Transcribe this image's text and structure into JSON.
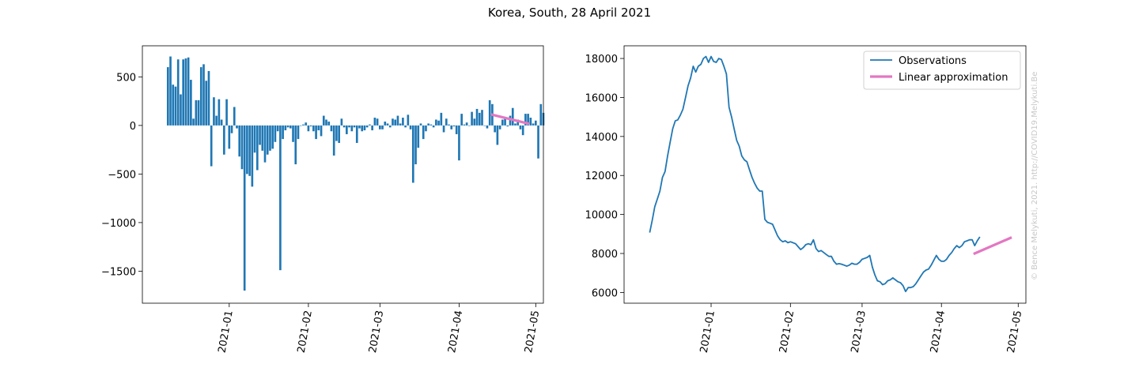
{
  "title": "Korea, South, 28 April 2021",
  "watermark": "© Bence Melykuti, 2021. http://COVID19.Melykuti.Be",
  "colors": {
    "bar": "#1f77b4",
    "observations": "#1f77b4",
    "linear": "#e377c2"
  },
  "chart_data": [
    {
      "type": "bar",
      "title": "",
      "xlabel": "",
      "ylabel": "",
      "x_ticks": [
        "2021-01",
        "2021-02",
        "2021-03",
        "2021-04",
        "2021-05"
      ],
      "y_ticks": [
        "500",
        "0",
        "−500",
        "−1000",
        "−1500"
      ],
      "ylim": [
        -1830,
        820
      ],
      "xlim": [
        "2020-11-28",
        "2021-05-04"
      ],
      "x_start": "2020-12-08",
      "values": [
        600,
        710,
        420,
        400,
        680,
        320,
        680,
        690,
        700,
        470,
        70,
        260,
        260,
        600,
        630,
        460,
        560,
        -420,
        290,
        100,
        270,
        60,
        -300,
        270,
        -240,
        -80,
        190,
        -30,
        -320,
        -450,
        -1700,
        -500,
        -520,
        -630,
        -280,
        -460,
        -200,
        -260,
        -380,
        -300,
        -260,
        -240,
        -170,
        -60,
        -1490,
        -140,
        -50,
        -20,
        -30,
        -170,
        -400,
        -140,
        0,
        10,
        30,
        -60,
        -10,
        -60,
        -140,
        -50,
        -110,
        100,
        60,
        40,
        -60,
        -310,
        -160,
        -180,
        70,
        -20,
        -90,
        -20,
        -60,
        -20,
        -180,
        -30,
        -60,
        -50,
        -20,
        10,
        -50,
        80,
        70,
        -40,
        -40,
        40,
        20,
        -20,
        70,
        60,
        100,
        20,
        80,
        -20,
        110,
        -40,
        -590,
        -400,
        -230,
        20,
        -140,
        -60,
        20,
        10,
        -20,
        60,
        50,
        130,
        -70,
        70,
        10,
        -40,
        -10,
        -90,
        -360,
        120,
        10,
        30,
        0,
        140,
        70,
        170,
        130,
        160,
        0,
        -30,
        260,
        220,
        -70,
        -200,
        -40,
        60,
        70,
        -10,
        100,
        180,
        20,
        60,
        -40,
        -100,
        120,
        120,
        80,
        20,
        50,
        -340,
        220,
        130
      ],
      "series": [
        {
          "name": "",
          "values": []
        }
      ],
      "linear_approximation": {
        "start": [
          "2021-04-14",
          110
        ],
        "end": [
          "2021-04-28",
          20
        ]
      }
    },
    {
      "type": "line",
      "title": "",
      "xlabel": "",
      "ylabel": "",
      "x_ticks": [
        "2021-01",
        "2021-02",
        "2021-03",
        "2021-04",
        "2021-05"
      ],
      "y_ticks": [
        "18000",
        "16000",
        "14000",
        "12000",
        "10000",
        "8000",
        "6000"
      ],
      "ylim": [
        5450,
        18650
      ],
      "xlim": [
        "2020-11-28",
        "2021-05-04"
      ],
      "legend_position": "top-right",
      "series": [
        {
          "name": "Observations",
          "x_start": "2020-12-08",
          "values": [
            9070,
            9700,
            10400,
            10800,
            11200,
            11900,
            12200,
            13000,
            13700,
            14400,
            14800,
            14850,
            15100,
            15400,
            16000,
            16600,
            17000,
            17600,
            17300,
            17600,
            17700,
            18000,
            18100,
            17800,
            18100,
            17850,
            17800,
            18000,
            17950,
            17600,
            17200,
            15500,
            15000,
            14400,
            13800,
            13500,
            13000,
            12800,
            12700,
            12300,
            11900,
            11600,
            11350,
            11200,
            11200,
            9750,
            9600,
            9550,
            9500,
            9200,
            8900,
            8700,
            8600,
            8650,
            8550,
            8600,
            8550,
            8500,
            8350,
            8200,
            8300,
            8450,
            8500,
            8450,
            8700,
            8250,
            8100,
            8150,
            8050,
            7950,
            7850,
            7850,
            7600,
            7450,
            7480,
            7450,
            7400,
            7350,
            7400,
            7500,
            7450,
            7450,
            7550,
            7700,
            7750,
            7800,
            7900,
            7300,
            6900,
            6600,
            6550,
            6400,
            6450,
            6600,
            6650,
            6750,
            6650,
            6550,
            6500,
            6350,
            6050,
            6250,
            6250,
            6300,
            6450,
            6650,
            6850,
            7050,
            7150,
            7200,
            7400,
            7650,
            7900,
            7700,
            7600,
            7600,
            7700,
            7900,
            8050,
            8250,
            8400,
            8300,
            8400,
            8600,
            8650,
            8700,
            8700,
            8400,
            8650,
            8850
          ]
        },
        {
          "name": "Linear approximation",
          "points": [
            [
              "2021-04-14",
              8000
            ],
            [
              "2021-04-28",
              8800
            ]
          ]
        }
      ]
    }
  ]
}
